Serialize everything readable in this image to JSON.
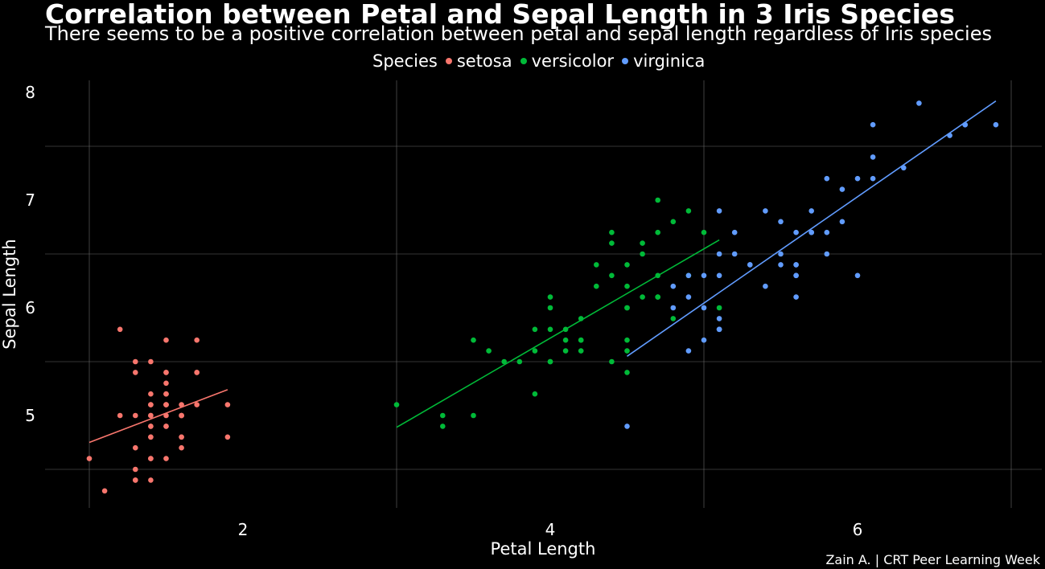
{
  "chart_data": {
    "type": "scatter",
    "title": "Correlation between Petal and Sepal Length in 3 Iris Species",
    "subtitle": "There seems to be a positive correlation between petal and sepal length regardless of Iris species",
    "xlabel": "Petal Length",
    "ylabel": "Sepal Length",
    "caption": "Zain A. | CRT Peer Learning Week",
    "legend_title": "Species",
    "legend_position": "top",
    "grid": true,
    "xlim": [
      1.0,
      6.9
    ],
    "ylim": [
      4.3,
      7.9
    ],
    "x_ticks": [
      2,
      4,
      6
    ],
    "y_ticks": [
      5,
      6,
      7,
      8
    ],
    "series": [
      {
        "name": "setosa",
        "color": "#F8766D",
        "points": [
          [
            1.4,
            5.1
          ],
          [
            1.4,
            4.9
          ],
          [
            1.3,
            4.7
          ],
          [
            1.5,
            4.6
          ],
          [
            1.4,
            5.0
          ],
          [
            1.7,
            5.4
          ],
          [
            1.4,
            4.6
          ],
          [
            1.5,
            5.0
          ],
          [
            1.4,
            4.4
          ],
          [
            1.5,
            4.9
          ],
          [
            1.5,
            5.4
          ],
          [
            1.6,
            4.8
          ],
          [
            1.4,
            4.8
          ],
          [
            1.1,
            4.3
          ],
          [
            1.2,
            5.8
          ],
          [
            1.5,
            5.7
          ],
          [
            1.3,
            5.4
          ],
          [
            1.4,
            5.1
          ],
          [
            1.7,
            5.7
          ],
          [
            1.5,
            5.1
          ],
          [
            1.7,
            5.4
          ],
          [
            1.5,
            5.1
          ],
          [
            1.0,
            4.6
          ],
          [
            1.7,
            5.1
          ],
          [
            1.9,
            4.8
          ],
          [
            1.6,
            5.0
          ],
          [
            1.6,
            5.0
          ],
          [
            1.5,
            5.2
          ],
          [
            1.4,
            5.2
          ],
          [
            1.6,
            4.7
          ],
          [
            1.6,
            4.8
          ],
          [
            1.5,
            5.4
          ],
          [
            1.5,
            5.2
          ],
          [
            1.4,
            5.5
          ],
          [
            1.5,
            4.9
          ],
          [
            1.2,
            5.0
          ],
          [
            1.3,
            5.5
          ],
          [
            1.4,
            4.9
          ],
          [
            1.3,
            4.4
          ],
          [
            1.5,
            5.1
          ],
          [
            1.3,
            5.0
          ],
          [
            1.3,
            4.5
          ],
          [
            1.3,
            4.4
          ],
          [
            1.6,
            5.0
          ],
          [
            1.9,
            5.1
          ],
          [
            1.4,
            4.8
          ],
          [
            1.6,
            5.1
          ],
          [
            1.4,
            4.6
          ],
          [
            1.5,
            5.3
          ],
          [
            1.4,
            5.0
          ]
        ],
        "fit": [
          [
            1.0,
            4.75
          ],
          [
            1.9,
            5.24
          ]
        ]
      },
      {
        "name": "versicolor",
        "color": "#00BA38",
        "points": [
          [
            4.7,
            7.0
          ],
          [
            4.5,
            6.4
          ],
          [
            4.9,
            6.9
          ],
          [
            4.0,
            5.5
          ],
          [
            4.6,
            6.5
          ],
          [
            4.5,
            5.7
          ],
          [
            4.7,
            6.3
          ],
          [
            3.3,
            4.9
          ],
          [
            4.6,
            6.6
          ],
          [
            3.9,
            5.2
          ],
          [
            3.5,
            5.0
          ],
          [
            4.2,
            5.9
          ],
          [
            4.0,
            6.0
          ],
          [
            4.7,
            6.1
          ],
          [
            3.6,
            5.6
          ],
          [
            4.4,
            6.7
          ],
          [
            4.5,
            5.6
          ],
          [
            4.1,
            5.8
          ],
          [
            4.5,
            6.2
          ],
          [
            3.9,
            5.6
          ],
          [
            4.8,
            5.9
          ],
          [
            4.0,
            6.1
          ],
          [
            4.9,
            6.3
          ],
          [
            4.7,
            6.1
          ],
          [
            4.3,
            6.4
          ],
          [
            4.4,
            6.6
          ],
          [
            4.8,
            6.8
          ],
          [
            5.0,
            6.7
          ],
          [
            4.5,
            6.0
          ],
          [
            3.5,
            5.7
          ],
          [
            3.8,
            5.5
          ],
          [
            3.7,
            5.5
          ],
          [
            3.9,
            5.8
          ],
          [
            5.1,
            6.0
          ],
          [
            4.5,
            5.4
          ],
          [
            4.5,
            6.0
          ],
          [
            4.7,
            6.7
          ],
          [
            4.4,
            6.3
          ],
          [
            4.1,
            5.6
          ],
          [
            4.0,
            5.5
          ],
          [
            4.4,
            5.5
          ],
          [
            4.6,
            6.1
          ],
          [
            4.0,
            5.8
          ],
          [
            3.3,
            5.0
          ],
          [
            4.2,
            5.6
          ],
          [
            4.2,
            5.7
          ],
          [
            4.2,
            5.7
          ],
          [
            4.3,
            6.2
          ],
          [
            3.0,
            5.1
          ],
          [
            4.1,
            5.7
          ]
        ],
        "fit": [
          [
            3.0,
            4.89
          ],
          [
            5.1,
            6.63
          ]
        ]
      },
      {
        "name": "virginica",
        "color": "#619CFF",
        "points": [
          [
            6.0,
            6.3
          ],
          [
            5.1,
            5.8
          ],
          [
            5.9,
            7.1
          ],
          [
            5.6,
            6.3
          ],
          [
            5.8,
            6.5
          ],
          [
            6.6,
            7.6
          ],
          [
            4.5,
            4.9
          ],
          [
            6.3,
            7.3
          ],
          [
            5.8,
            6.7
          ],
          [
            6.1,
            7.2
          ],
          [
            5.1,
            6.5
          ],
          [
            5.3,
            6.4
          ],
          [
            5.5,
            6.8
          ],
          [
            5.0,
            5.7
          ],
          [
            5.1,
            5.8
          ],
          [
            5.3,
            6.4
          ],
          [
            5.5,
            6.5
          ],
          [
            6.7,
            7.7
          ],
          [
            6.9,
            7.7
          ],
          [
            5.0,
            6.0
          ],
          [
            5.7,
            6.9
          ],
          [
            4.9,
            5.6
          ],
          [
            6.7,
            7.7
          ],
          [
            4.9,
            6.3
          ],
          [
            5.7,
            6.7
          ],
          [
            6.0,
            7.2
          ],
          [
            4.8,
            6.2
          ],
          [
            4.9,
            6.1
          ],
          [
            5.6,
            6.4
          ],
          [
            5.8,
            7.2
          ],
          [
            6.1,
            7.4
          ],
          [
            6.4,
            7.9
          ],
          [
            5.6,
            6.4
          ],
          [
            5.1,
            6.3
          ],
          [
            5.6,
            6.1
          ],
          [
            6.1,
            7.7
          ],
          [
            5.6,
            6.3
          ],
          [
            5.5,
            6.4
          ],
          [
            4.8,
            6.0
          ],
          [
            5.4,
            6.9
          ],
          [
            5.6,
            6.7
          ],
          [
            5.1,
            6.9
          ],
          [
            5.1,
            5.8
          ],
          [
            5.9,
            6.8
          ],
          [
            5.7,
            6.7
          ],
          [
            5.2,
            6.7
          ],
          [
            5.0,
            6.3
          ],
          [
            5.2,
            6.5
          ],
          [
            5.4,
            6.2
          ],
          [
            5.1,
            5.9
          ]
        ],
        "fit": [
          [
            4.5,
            5.55
          ],
          [
            6.9,
            7.92
          ]
        ]
      }
    ]
  }
}
